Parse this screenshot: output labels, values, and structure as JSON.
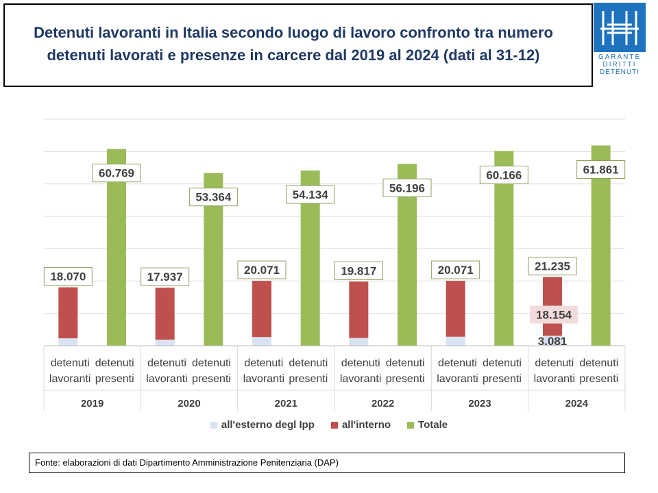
{
  "title": "Detenuti lavoranti in Italia secondo luogo di lavoro confronto tra numero\ndetenuti lavorati  e presenze in carcere dal 2019 al 2024 (dati al 31-12)",
  "logo": {
    "line1": "GARANTE",
    "line2": "DIRITTI",
    "line3": "DETENUTI",
    "color": "#1e73be"
  },
  "colors": {
    "esterno": "#dae3f3",
    "interno": "#c0504d",
    "totale": "#9bbb59",
    "grid": "#d9d9d9",
    "title": "#1f3864"
  },
  "chart_data": {
    "type": "bar",
    "stacked": true,
    "ylim": [
      0,
      70000
    ],
    "grid": true,
    "legend_position": "bottom",
    "groups": [
      {
        "year": "2019",
        "categories": [
          "detenuti lavoranti",
          "detenuti presenti"
        ],
        "esterno": 2300,
        "interno": 15770,
        "lavoranti_total": "18.070",
        "presenti_total": "60.769",
        "presenti_value": 60769
      },
      {
        "year": "2020",
        "categories": [
          "detenuti lavoranti",
          "detenuti presenti"
        ],
        "esterno": 1900,
        "interno": 16037,
        "lavoranti_total": "17.937",
        "presenti_total": "53.364",
        "presenti_value": 53364
      },
      {
        "year": "2021",
        "categories": [
          "detenuti lavoranti",
          "detenuti presenti"
        ],
        "esterno": 2700,
        "interno": 17371,
        "lavoranti_total": "20.071",
        "presenti_total": "54.134",
        "presenti_value": 54134
      },
      {
        "year": "2022",
        "categories": [
          "detenuti lavoranti",
          "detenuti presenti"
        ],
        "esterno": 2400,
        "interno": 17417,
        "lavoranti_total": "19.817",
        "presenti_total": "56.196",
        "presenti_value": 56196
      },
      {
        "year": "2023",
        "categories": [
          "detenuti lavoranti",
          "detenuti presenti"
        ],
        "esterno": 2800,
        "interno": 17271,
        "lavoranti_total": "20.071",
        "presenti_total": "60.166",
        "presenti_value": 60166
      },
      {
        "year": "2024",
        "categories": [
          "detenuti lavoranti",
          "detenuti presenti"
        ],
        "esterno": 3081,
        "interno": 18154,
        "lavoranti_total": "21.235",
        "presenti_total": "61.861",
        "presenti_value": 61861,
        "esterno_label": "3.081",
        "interno_label": "18.154"
      }
    ],
    "series": [
      {
        "name": "all'esterno degl Ipp"
      },
      {
        "name": "all'interno"
      },
      {
        "name": "Totale"
      }
    ]
  },
  "source": "Fonte: elaborazioni di dati Dipartimento Amministrazione Penitenziaria (DAP)"
}
